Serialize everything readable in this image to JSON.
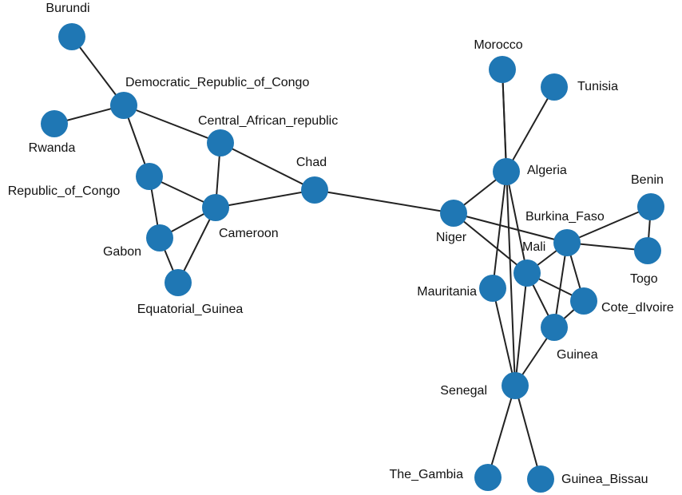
{
  "colors": {
    "node": "#1f77b4",
    "edge": "#222222",
    "label": "#111111"
  },
  "nodes": [
    {
      "id": "Burundi",
      "label": "Burundi"
    },
    {
      "id": "Democratic_Republic_of_Congo",
      "label": "Democratic_Republic_of_Congo"
    },
    {
      "id": "Rwanda",
      "label": "Rwanda"
    },
    {
      "id": "Republic_of_Congo",
      "label": "Republic_of_Congo"
    },
    {
      "id": "Central_African_republic",
      "label": "Central_African_republic"
    },
    {
      "id": "Cameroon",
      "label": "Cameroon"
    },
    {
      "id": "Gabon",
      "label": "Gabon"
    },
    {
      "id": "Equatorial_Guinea",
      "label": "Equatorial_Guinea"
    },
    {
      "id": "Chad",
      "label": "Chad"
    },
    {
      "id": "Niger",
      "label": "Niger"
    },
    {
      "id": "Algeria",
      "label": "Algeria"
    },
    {
      "id": "Morocco",
      "label": "Morocco"
    },
    {
      "id": "Tunisia",
      "label": "Tunisia"
    },
    {
      "id": "Burkina_Faso",
      "label": "Burkina_Faso"
    },
    {
      "id": "Benin",
      "label": "Benin"
    },
    {
      "id": "Togo",
      "label": "Togo"
    },
    {
      "id": "Mali",
      "label": "Mali"
    },
    {
      "id": "Mauritania",
      "label": "Mauritania"
    },
    {
      "id": "Cote_dIvoire",
      "label": "Cote_dIvoire"
    },
    {
      "id": "Guinea",
      "label": "Guinea"
    },
    {
      "id": "Senegal",
      "label": "Senegal"
    },
    {
      "id": "The_Gambia",
      "label": "The_Gambia"
    },
    {
      "id": "Guinea_Bissau",
      "label": "Guinea_Bissau"
    }
  ],
  "edges": [
    [
      "Burundi",
      "Democratic_Republic_of_Congo"
    ],
    [
      "Rwanda",
      "Democratic_Republic_of_Congo"
    ],
    [
      "Democratic_Republic_of_Congo",
      "Central_African_republic"
    ],
    [
      "Democratic_Republic_of_Congo",
      "Republic_of_Congo"
    ],
    [
      "Republic_of_Congo",
      "Cameroon"
    ],
    [
      "Republic_of_Congo",
      "Gabon"
    ],
    [
      "Central_African_republic",
      "Cameroon"
    ],
    [
      "Central_African_republic",
      "Chad"
    ],
    [
      "Cameroon",
      "Chad"
    ],
    [
      "Cameroon",
      "Gabon"
    ],
    [
      "Cameroon",
      "Equatorial_Guinea"
    ],
    [
      "Gabon",
      "Equatorial_Guinea"
    ],
    [
      "Chad",
      "Niger"
    ],
    [
      "Niger",
      "Algeria"
    ],
    [
      "Niger",
      "Burkina_Faso"
    ],
    [
      "Niger",
      "Mali"
    ],
    [
      "Algeria",
      "Morocco"
    ],
    [
      "Algeria",
      "Tunisia"
    ],
    [
      "Algeria",
      "Mali"
    ],
    [
      "Algeria",
      "Mauritania"
    ],
    [
      "Morocco",
      "Senegal"
    ],
    [
      "Burkina_Faso",
      "Benin"
    ],
    [
      "Burkina_Faso",
      "Togo"
    ],
    [
      "Benin",
      "Togo"
    ],
    [
      "Burkina_Faso",
      "Mali"
    ],
    [
      "Burkina_Faso",
      "Cote_dIvoire"
    ],
    [
      "Burkina_Faso",
      "Guinea"
    ],
    [
      "Mali",
      "Cote_dIvoire"
    ],
    [
      "Mali",
      "Guinea"
    ],
    [
      "Mali",
      "Senegal"
    ],
    [
      "Cote_dIvoire",
      "Guinea"
    ],
    [
      "Guinea",
      "Senegal"
    ],
    [
      "Mauritania",
      "Senegal"
    ],
    [
      "Senegal",
      "The_Gambia"
    ],
    [
      "Senegal",
      "Guinea_Bissau"
    ]
  ]
}
